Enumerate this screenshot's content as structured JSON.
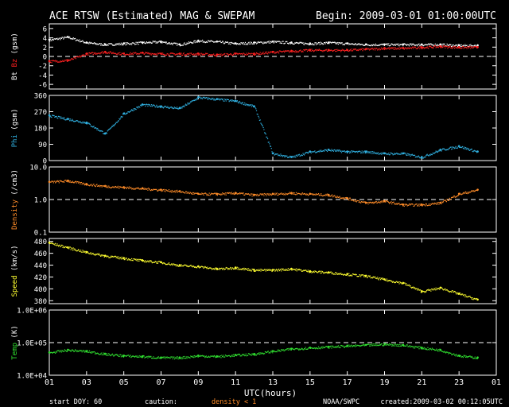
{
  "header": {
    "title": "ACE RTSW (Estimated) MAG & SWEPAM",
    "begin": "Begin: 2009-03-01 01:00:00UTC"
  },
  "footer": {
    "start_doy_label": "start DOY:",
    "start_doy_value": "60",
    "caution_label": "caution:",
    "caution_note": "density < 1",
    "source": "NOAA/SWPC",
    "created": "created:2009-03-02 00:12:05UTC"
  },
  "colors": {
    "bt": "#ffffff",
    "bz": "#ff2020",
    "phi": "#30b0e0",
    "density": "#ff8c28",
    "speed": "#ffff30",
    "temp": "#30e030",
    "frame": "#ffffff",
    "background": "#000000"
  },
  "chart_data": [
    {
      "type": "scatter",
      "panel": "mag",
      "ylabel_parts": [
        "Bt",
        "Bz",
        "(gsm)"
      ],
      "ylim": [
        -7,
        7
      ],
      "yticks": [
        "6",
        "4",
        "2",
        "0",
        "-2",
        "-4",
        "-6"
      ],
      "ytick_values": [
        6,
        4,
        2,
        0,
        -2,
        -4,
        -6
      ],
      "reference_line": 0,
      "series": [
        {
          "name": "Bt",
          "x": [
            1.0,
            2.0,
            3.0,
            4.0,
            5.0,
            6.0,
            7.0,
            8.0,
            9.0,
            10.0,
            11.0,
            12.0,
            13.0,
            14.0,
            15.0,
            16.0,
            17.0,
            18.0,
            19.0,
            20.0,
            21.0,
            22.0,
            23.0,
            24.0
          ],
          "y": [
            3.6,
            4.2,
            3.0,
            2.6,
            2.8,
            3.0,
            3.2,
            2.6,
            3.4,
            3.2,
            2.8,
            3.0,
            3.2,
            3.0,
            2.8,
            3.0,
            2.8,
            2.6,
            2.6,
            2.6,
            2.6,
            2.6,
            2.4,
            2.4
          ]
        },
        {
          "name": "Bz",
          "x": [
            1.0,
            2.0,
            3.0,
            4.0,
            5.0,
            6.0,
            7.0,
            8.0,
            9.0,
            10.0,
            11.0,
            12.0,
            13.0,
            14.0,
            15.0,
            16.0,
            17.0,
            18.0,
            19.0,
            20.0,
            21.0,
            22.0,
            23.0,
            24.0
          ],
          "y": [
            -1.0,
            -0.8,
            0.6,
            1.0,
            0.6,
            0.8,
            0.6,
            0.6,
            0.6,
            0.4,
            0.6,
            0.6,
            1.0,
            1.2,
            1.4,
            1.4,
            1.4,
            1.6,
            1.8,
            1.8,
            2.0,
            2.2,
            2.0,
            2.0
          ]
        }
      ]
    },
    {
      "type": "scatter",
      "panel": "phi",
      "ylabel_parts": [
        "Phi",
        "(gsm)"
      ],
      "ylim": [
        0,
        360
      ],
      "yticks": [
        "360",
        "270",
        "180",
        "90",
        "0"
      ],
      "ytick_values": [
        360,
        270,
        180,
        90,
        0
      ],
      "series": [
        {
          "name": "Phi",
          "x": [
            1.0,
            2.0,
            3.0,
            4.0,
            5.0,
            6.0,
            7.0,
            8.0,
            9.0,
            10.0,
            11.0,
            12.0,
            13.0,
            14.0,
            15.0,
            16.0,
            17.0,
            18.0,
            19.0,
            20.0,
            21.0,
            22.0,
            23.0,
            24.0
          ],
          "y": [
            250,
            230,
            210,
            150,
            260,
            310,
            300,
            290,
            350,
            340,
            330,
            300,
            40,
            20,
            50,
            60,
            50,
            50,
            40,
            40,
            20,
            60,
            80,
            50
          ]
        }
      ]
    },
    {
      "type": "scatter",
      "panel": "density",
      "ylabel_parts": [
        "Density",
        "(/cm3)"
      ],
      "yscale": "log",
      "ylim": [
        0.1,
        10
      ],
      "yticks": [
        "10.0",
        "1.0",
        "0.1"
      ],
      "ytick_values": [
        10,
        1,
        0.1
      ],
      "reference_line": 1.0,
      "series": [
        {
          "name": "Density",
          "x": [
            1.0,
            2.0,
            3.0,
            4.0,
            5.0,
            6.0,
            7.0,
            8.0,
            9.0,
            10.0,
            11.0,
            12.0,
            13.0,
            14.0,
            15.0,
            16.0,
            17.0,
            18.0,
            19.0,
            20.0,
            21.0,
            22.0,
            23.0,
            24.0
          ],
          "y": [
            3.5,
            3.8,
            3.0,
            2.6,
            2.4,
            2.2,
            2.0,
            1.8,
            1.5,
            1.5,
            1.6,
            1.4,
            1.5,
            1.6,
            1.5,
            1.4,
            1.1,
            0.8,
            0.9,
            0.7,
            0.7,
            0.8,
            1.5,
            2.0
          ]
        }
      ]
    },
    {
      "type": "scatter",
      "panel": "speed",
      "ylabel_parts": [
        "Speed",
        "(km/s)"
      ],
      "ylim": [
        375,
        485
      ],
      "yticks": [
        "480",
        "460",
        "440",
        "420",
        "400",
        "380"
      ],
      "ytick_values": [
        480,
        460,
        440,
        420,
        400,
        380
      ],
      "series": [
        {
          "name": "Speed",
          "x": [
            1.0,
            2.0,
            3.0,
            4.0,
            5.0,
            6.0,
            7.0,
            8.0,
            9.0,
            10.0,
            11.0,
            12.0,
            13.0,
            14.0,
            15.0,
            16.0,
            17.0,
            18.0,
            19.0,
            20.0,
            21.0,
            22.0,
            23.0,
            24.0
          ],
          "y": [
            478,
            470,
            462,
            456,
            452,
            448,
            445,
            440,
            438,
            434,
            436,
            432,
            432,
            434,
            430,
            428,
            425,
            422,
            416,
            410,
            396,
            402,
            392,
            382
          ]
        }
      ]
    },
    {
      "type": "scatter",
      "panel": "temp",
      "ylabel_parts": [
        "Temp",
        "(K)"
      ],
      "yscale": "log",
      "ylim": [
        10000,
        1000000
      ],
      "yticks": [
        "1.0E+06",
        "1.0E+05",
        "1.0E+04"
      ],
      "ytick_values": [
        1000000,
        100000,
        10000
      ],
      "reference_line": 100000,
      "series": [
        {
          "name": "Temp",
          "x": [
            1.0,
            2.0,
            3.0,
            4.0,
            5.0,
            6.0,
            7.0,
            8.0,
            9.0,
            10.0,
            11.0,
            12.0,
            13.0,
            14.0,
            15.0,
            16.0,
            17.0,
            18.0,
            19.0,
            20.0,
            21.0,
            22.0,
            23.0,
            24.0
          ],
          "y": [
            50000,
            60000,
            55000,
            45000,
            40000,
            38000,
            35000,
            35000,
            40000,
            38000,
            42000,
            45000,
            55000,
            65000,
            70000,
            75000,
            80000,
            85000,
            90000,
            85000,
            70000,
            60000,
            40000,
            35000
          ]
        }
      ]
    }
  ],
  "x_axis": {
    "label": "UTC(hours)",
    "xlim": [
      1,
      25
    ],
    "ticks": [
      "01",
      "03",
      "05",
      "07",
      "09",
      "11",
      "13",
      "15",
      "17",
      "19",
      "21",
      "23",
      "01"
    ],
    "tick_values": [
      1,
      3,
      5,
      7,
      9,
      11,
      13,
      15,
      17,
      19,
      21,
      23,
      25
    ]
  }
}
